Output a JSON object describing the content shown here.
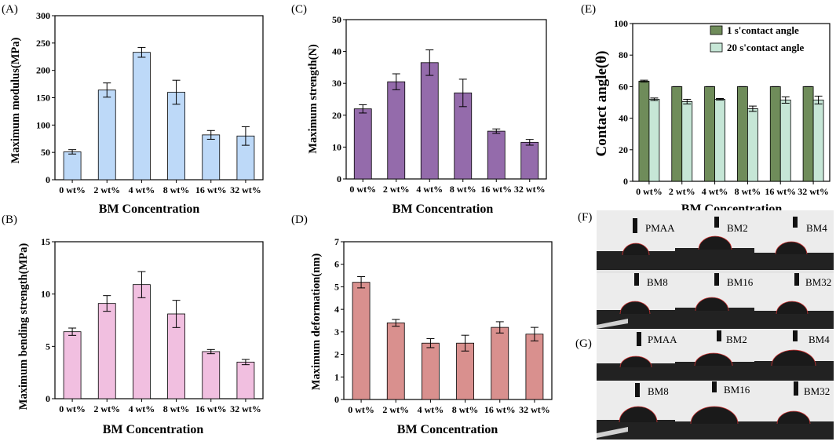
{
  "chart_data": [
    {
      "id": "A",
      "type": "bar",
      "panel_label": "(A)",
      "categories": [
        "0 wt%",
        "2 wt%",
        "4 wt%",
        "8 wt%",
        "16 wt%",
        "32 wt%"
      ],
      "values": [
        51,
        164,
        233,
        160,
        82,
        80
      ],
      "errors": [
        4,
        13,
        9,
        22,
        8,
        17
      ],
      "ylim": [
        0,
        300
      ],
      "yticks": [
        "0",
        "50",
        "100",
        "150",
        "200",
        "250",
        "300"
      ],
      "ylabel": "Maximum modulus(MPa)",
      "xlabel": "BM Concentration",
      "color": "#bdd9f8"
    },
    {
      "id": "B",
      "type": "bar",
      "panel_label": "(B)",
      "categories": [
        "0 wt%",
        "2 wt%",
        "4 wt%",
        "8 wt%",
        "16 wt%",
        "32 wt%"
      ],
      "values": [
        6.4,
        9.1,
        10.9,
        8.1,
        4.5,
        3.5
      ],
      "errors": [
        0.35,
        0.75,
        1.25,
        1.3,
        0.2,
        0.25
      ],
      "ylim": [
        0,
        15
      ],
      "yticks": [
        "0",
        "5",
        "10",
        "15"
      ],
      "ylabel": "Maximum bending strength(MPa)",
      "xlabel": "BM Concentration",
      "color": "#f1bfe0"
    },
    {
      "id": "C",
      "type": "bar",
      "panel_label": "(C)",
      "categories": [
        "0 wt%",
        "2 wt%",
        "4 wt%",
        "8 wt%",
        "16 wt%",
        "32 wt%"
      ],
      "values": [
        22,
        30.5,
        36.5,
        27,
        15,
        11.5
      ],
      "errors": [
        1.3,
        2.5,
        4.0,
        4.3,
        0.7,
        0.9
      ],
      "ylim": [
        0,
        50
      ],
      "yticks": [
        "0",
        "10",
        "20",
        "30",
        "40",
        "50"
      ],
      "ylabel": "Maximum strength(N)",
      "xlabel": "BM Concentration",
      "color": "#946bab"
    },
    {
      "id": "D",
      "type": "bar",
      "panel_label": "(D)",
      "categories": [
        "0 wt%",
        "2 wt%",
        "4 wt%",
        "8 wt%",
        "16 wt%",
        "32 wt%"
      ],
      "values": [
        5.2,
        3.4,
        2.5,
        2.5,
        3.2,
        2.9
      ],
      "errors": [
        0.25,
        0.15,
        0.2,
        0.35,
        0.25,
        0.3
      ],
      "ylim": [
        0,
        7
      ],
      "yticks": [
        "0",
        "1",
        "2",
        "3",
        "4",
        "5",
        "6",
        "7"
      ],
      "ylabel": "Maximum deformation(nm)",
      "xlabel": "BM Concentration",
      "color": "#d9908e"
    },
    {
      "id": "E",
      "type": "bar",
      "panel_label": "(E)",
      "categories": [
        "0 wt%",
        "2 wt%",
        "4 wt%",
        "8 wt%",
        "16 wt%",
        "32 wt%"
      ],
      "series": [
        {
          "name": "1 s'contact angle",
          "values": [
            63.5,
            60,
            60,
            60,
            60,
            60
          ],
          "errors": [
            0.6,
            0,
            0,
            0,
            0,
            0
          ],
          "color": "#6f8c5a"
        },
        {
          "name": "20 s'contact angle",
          "values": [
            52,
            50.5,
            52,
            46,
            51.5,
            51.5
          ],
          "errors": [
            0.8,
            1.5,
            0.5,
            1.7,
            2.0,
            2.5
          ],
          "color": "#c6e6d6"
        }
      ],
      "ylim": [
        0,
        100
      ],
      "yticks": [
        "0",
        "20",
        "40",
        "60",
        "80",
        "100"
      ],
      "ylabel": "Contact angle(θ)",
      "xlabel": "BM Concentration",
      "legend": "top-right"
    }
  ],
  "photos": [
    {
      "panel_label": "(F)",
      "labels": [
        "PMAA",
        "BM2",
        "BM4",
        "BM8",
        "BM16",
        "BM32"
      ]
    },
    {
      "panel_label": "(G)",
      "labels": [
        "PMAA",
        "BM2",
        "BM4",
        "BM8",
        "BM16",
        "BM32"
      ]
    }
  ]
}
